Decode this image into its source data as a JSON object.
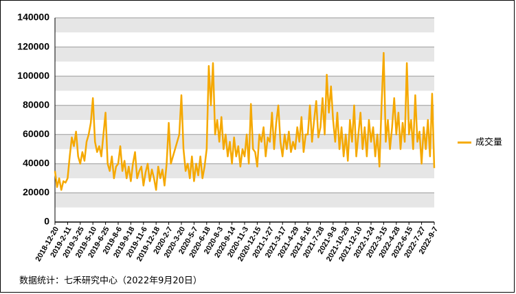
{
  "chart_data": {
    "type": "line",
    "categories": [
      "2018-12-20",
      null,
      null,
      null,
      null,
      null,
      "2019-2-11",
      null,
      null,
      null,
      null,
      null,
      "2019-3-25",
      null,
      null,
      null,
      null,
      null,
      "2019-5-10",
      null,
      null,
      null,
      null,
      null,
      "2019-6-25",
      null,
      null,
      null,
      null,
      null,
      "2019-8-6",
      null,
      null,
      null,
      null,
      null,
      "2019-9-18",
      null,
      null,
      null,
      null,
      null,
      "2019-11-6",
      null,
      null,
      null,
      null,
      null,
      "2019-12-18",
      null,
      null,
      null,
      null,
      null,
      "2020-2-7",
      null,
      null,
      null,
      null,
      null,
      "2020-3-20",
      null,
      null,
      null,
      null,
      null,
      "2020-5-7",
      null,
      null,
      null,
      null,
      null,
      "2020-6-18",
      null,
      null,
      null,
      null,
      null,
      "2020-8-3",
      null,
      null,
      null,
      null,
      null,
      "2020-9-14",
      null,
      null,
      null,
      null,
      null,
      "2020-11-3",
      null,
      null,
      null,
      null,
      null,
      "2020-12-15",
      null,
      null,
      null,
      null,
      null,
      "2021-1-27",
      null,
      null,
      null,
      null,
      null,
      "2021-3-17",
      null,
      null,
      null,
      null,
      null,
      "2021-4-29",
      null,
      null,
      null,
      null,
      null,
      "2021-6-16",
      null,
      null,
      null,
      null,
      null,
      "2021-7-28",
      null,
      null,
      null,
      null,
      null,
      "2021-9-8",
      null,
      null,
      null,
      null,
      null,
      "2021-10-29",
      null,
      null,
      null,
      null,
      null,
      "2021-12-10",
      null,
      null,
      null,
      null,
      null,
      "2022-1-24",
      null,
      null,
      null,
      null,
      null,
      "2022-3-15",
      null,
      null,
      null,
      null,
      null,
      "2022-4-28",
      null,
      null,
      null,
      null,
      null,
      "2022-6-15",
      null,
      null,
      null,
      null,
      null,
      "2022-7-27",
      null,
      null,
      null,
      null,
      null,
      "2022-9-7"
    ],
    "series": [
      {
        "name": "成交量",
        "color": "#f5a800",
        "values": [
          35000,
          24000,
          30000,
          22000,
          28000,
          27000,
          30000,
          45000,
          58000,
          52000,
          62000,
          45000,
          40000,
          48000,
          42000,
          55000,
          60000,
          68000,
          85000,
          55000,
          48000,
          52000,
          45000,
          60000,
          75000,
          40000,
          35000,
          45000,
          30000,
          38000,
          40000,
          52000,
          35000,
          42000,
          30000,
          38000,
          28000,
          40000,
          48000,
          30000,
          35000,
          38000,
          25000,
          34000,
          40000,
          28000,
          36000,
          30000,
          22000,
          38000,
          30000,
          36000,
          25000,
          40000,
          68000,
          40000,
          45000,
          50000,
          55000,
          60000,
          87000,
          50000,
          35000,
          40000,
          30000,
          45000,
          28000,
          40000,
          32000,
          45000,
          30000,
          38000,
          50000,
          107000,
          80000,
          109000,
          60000,
          70000,
          55000,
          72000,
          50000,
          60000,
          45000,
          55000,
          40000,
          58000,
          45000,
          52000,
          38000,
          50000,
          45000,
          60000,
          40000,
          81000,
          50000,
          48000,
          38000,
          60000,
          55000,
          65000,
          45000,
          58000,
          55000,
          75000,
          50000,
          68000,
          80000,
          55000,
          45000,
          60000,
          50000,
          62000,
          48000,
          55000,
          50000,
          65000,
          55000,
          72000,
          48000,
          60000,
          60000,
          80000,
          55000,
          70000,
          83000,
          58000,
          65000,
          85000,
          60000,
          101000,
          75000,
          93000,
          70000,
          55000,
          75000,
          50000,
          65000,
          45000,
          60000,
          42000,
          70000,
          55000,
          80000,
          45000,
          60000,
          75000,
          50000,
          65000,
          45000,
          70000,
          55000,
          65000,
          45000,
          60000,
          38000,
          80000,
          116000,
          55000,
          70000,
          50000,
          65000,
          85000,
          60000,
          75000,
          50000,
          68000,
          55000,
          109000,
          60000,
          70000,
          50000,
          87000,
          55000,
          62000,
          40000,
          65000,
          50000,
          70000,
          45000,
          88000,
          37000
        ]
      }
    ],
    "ylim": [
      0,
      140000
    ],
    "yticks": [
      0,
      20000,
      40000,
      60000,
      80000,
      100000,
      120000,
      140000
    ],
    "legend": "right",
    "source": "数据统计：七禾研究中心（2022年9月20日）"
  }
}
